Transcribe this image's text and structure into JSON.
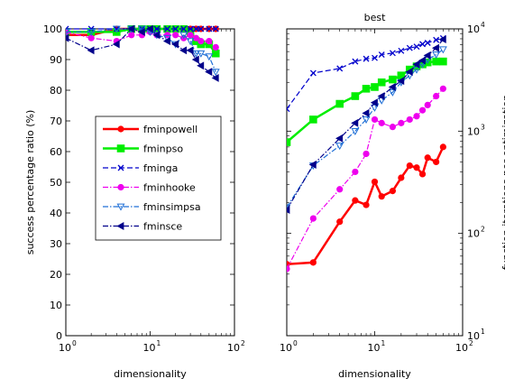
{
  "chart_data": [
    {
      "type": "line",
      "title": "",
      "xlabel": "dimensionality",
      "ylabel": "success percentage ratio (%)",
      "xscale": "log",
      "yscale": "linear",
      "xlim": [
        1,
        100
      ],
      "ylim": [
        0,
        100
      ],
      "x_ticks": [
        {
          "value": 1,
          "base": "10",
          "exp": "0"
        },
        {
          "value": 10,
          "base": "10",
          "exp": "1"
        },
        {
          "value": 100,
          "base": "10",
          "exp": "2"
        }
      ],
      "y_ticks": [
        "0",
        "10",
        "20",
        "30",
        "40",
        "50",
        "60",
        "70",
        "80",
        "90",
        "100"
      ],
      "y_tick_values": [
        0,
        10,
        20,
        30,
        40,
        50,
        60,
        70,
        80,
        90,
        100
      ],
      "legend_position": "center-left",
      "series": [
        {
          "name": "fminpowell",
          "color": "#ff0000",
          "marker": "dot",
          "dash": "solid",
          "width": 2.5,
          "points": [
            [
              1,
              98
            ],
            [
              2,
              98
            ],
            [
              4,
              100
            ],
            [
              6,
              100
            ],
            [
              8,
              100
            ],
            [
              10,
              100
            ],
            [
              12,
              100
            ],
            [
              16,
              100
            ],
            [
              20,
              100
            ],
            [
              25,
              100
            ],
            [
              30,
              100
            ],
            [
              35,
              100
            ],
            [
              40,
              100
            ],
            [
              50,
              100
            ],
            [
              60,
              100
            ]
          ]
        },
        {
          "name": "fminpso",
          "color": "#00ee00",
          "marker": "square",
          "dash": "solid",
          "width": 2.5,
          "points": [
            [
              1,
              99
            ],
            [
              2,
              99
            ],
            [
              4,
              99
            ],
            [
              6,
              100
            ],
            [
              8,
              100
            ],
            [
              10,
              100
            ],
            [
              12,
              100
            ],
            [
              16,
              100
            ],
            [
              20,
              100
            ],
            [
              25,
              100
            ],
            [
              30,
              99
            ],
            [
              35,
              96
            ],
            [
              40,
              95
            ],
            [
              50,
              95
            ],
            [
              60,
              92
            ]
          ]
        },
        {
          "name": "fminga",
          "color": "#0000cc",
          "marker": "x",
          "dash": "dash",
          "width": 1.2,
          "points": [
            [
              1,
              100
            ],
            [
              2,
              100
            ],
            [
              4,
              100
            ],
            [
              6,
              100
            ],
            [
              8,
              100
            ],
            [
              10,
              100
            ],
            [
              12,
              100
            ],
            [
              16,
              100
            ],
            [
              20,
              100
            ],
            [
              25,
              100
            ],
            [
              30,
              100
            ],
            [
              35,
              100
            ],
            [
              40,
              100
            ],
            [
              50,
              100
            ],
            [
              60,
              100
            ]
          ]
        },
        {
          "name": "fminhooke",
          "color": "#ee00ee",
          "marker": "dot",
          "dash": "dashdot",
          "width": 1.2,
          "points": [
            [
              1,
              99
            ],
            [
              2,
              97
            ],
            [
              4,
              96
            ],
            [
              6,
              98
            ],
            [
              8,
              98
            ],
            [
              10,
              99
            ],
            [
              12,
              98
            ],
            [
              16,
              98
            ],
            [
              20,
              98
            ],
            [
              25,
              97
            ],
            [
              30,
              98
            ],
            [
              35,
              97
            ],
            [
              40,
              96
            ],
            [
              50,
              96
            ],
            [
              60,
              94
            ]
          ]
        },
        {
          "name": "fminsimpsa",
          "color": "#1f6fd6",
          "marker": "triangle-down",
          "dash": "dashdot",
          "width": 1.2,
          "points": [
            [
              1,
              99
            ],
            [
              2,
              99
            ],
            [
              4,
              100
            ],
            [
              6,
              100
            ],
            [
              8,
              100
            ],
            [
              10,
              99
            ],
            [
              12,
              98
            ],
            [
              16,
              97
            ],
            [
              20,
              95
            ],
            [
              25,
              98
            ],
            [
              30,
              96
            ],
            [
              35,
              92
            ],
            [
              40,
              92
            ],
            [
              50,
              91
            ],
            [
              60,
              86
            ]
          ]
        },
        {
          "name": "fminsce",
          "color": "#00008b",
          "marker": "triangle-left",
          "dash": "dashdot",
          "width": 1.2,
          "points": [
            [
              1,
              97
            ],
            [
              2,
              93
            ],
            [
              4,
              95
            ],
            [
              6,
              100
            ],
            [
              8,
              99
            ],
            [
              10,
              100
            ],
            [
              12,
              98
            ],
            [
              16,
              96
            ],
            [
              20,
              95
            ],
            [
              25,
              93
            ],
            [
              30,
              93
            ],
            [
              35,
              90
            ],
            [
              40,
              88
            ],
            [
              50,
              86
            ],
            [
              60,
              84
            ]
          ]
        }
      ]
    },
    {
      "type": "line",
      "title": "best",
      "xlabel": "dimensionality",
      "ylabel": "function iterations per optimization",
      "xscale": "log",
      "yscale": "log",
      "xlim": [
        1,
        100
      ],
      "ylim": [
        10,
        10000
      ],
      "x_ticks": [
        {
          "value": 1,
          "base": "10",
          "exp": "0"
        },
        {
          "value": 10,
          "base": "10",
          "exp": "1"
        },
        {
          "value": 100,
          "base": "10",
          "exp": "2"
        }
      ],
      "y_ticks": [
        {
          "value": 10,
          "base": "10",
          "exp": "1"
        },
        {
          "value": 100,
          "base": "10",
          "exp": "2"
        },
        {
          "value": 1000,
          "base": "10",
          "exp": "3"
        },
        {
          "value": 10000,
          "base": "10",
          "exp": "4"
        }
      ],
      "series": [
        {
          "name": "fminpowell",
          "color": "#ff0000",
          "marker": "dot",
          "dash": "solid",
          "width": 2.5,
          "points": [
            [
              1,
              50
            ],
            [
              2,
              52
            ],
            [
              4,
              130
            ],
            [
              6,
              210
            ],
            [
              8,
              190
            ],
            [
              10,
              320
            ],
            [
              12,
              230
            ],
            [
              16,
              260
            ],
            [
              20,
              350
            ],
            [
              25,
              460
            ],
            [
              30,
              440
            ],
            [
              35,
              380
            ],
            [
              40,
              550
            ],
            [
              50,
              500
            ],
            [
              60,
              700
            ]
          ]
        },
        {
          "name": "fminpso",
          "color": "#00ee00",
          "marker": "square",
          "dash": "solid",
          "width": 2.5,
          "points": [
            [
              1,
              780
            ],
            [
              2,
              1300
            ],
            [
              4,
              1850
            ],
            [
              6,
              2200
            ],
            [
              8,
              2600
            ],
            [
              10,
              2700
            ],
            [
              12,
              3000
            ],
            [
              16,
              3200
            ],
            [
              20,
              3500
            ],
            [
              25,
              4000
            ],
            [
              30,
              4300
            ],
            [
              35,
              4500
            ],
            [
              40,
              4700
            ],
            [
              50,
              4800
            ],
            [
              60,
              4800
            ]
          ]
        },
        {
          "name": "fminga",
          "color": "#0000cc",
          "marker": "x",
          "dash": "dash",
          "width": 1.2,
          "points": [
            [
              1,
              1650
            ],
            [
              2,
              3700
            ],
            [
              4,
              4100
            ],
            [
              6,
              4800
            ],
            [
              8,
              5100
            ],
            [
              10,
              5200
            ],
            [
              12,
              5600
            ],
            [
              16,
              5800
            ],
            [
              20,
              6100
            ],
            [
              25,
              6500
            ],
            [
              30,
              6700
            ],
            [
              35,
              7100
            ],
            [
              40,
              7300
            ],
            [
              50,
              7800
            ],
            [
              60,
              8100
            ]
          ]
        },
        {
          "name": "fminhooke",
          "color": "#ee00ee",
          "marker": "dot",
          "dash": "dashdot",
          "width": 1.2,
          "points": [
            [
              1,
              45
            ],
            [
              2,
              140
            ],
            [
              4,
              270
            ],
            [
              6,
              400
            ],
            [
              8,
              600
            ],
            [
              10,
              1300
            ],
            [
              12,
              1200
            ],
            [
              16,
              1100
            ],
            [
              20,
              1200
            ],
            [
              25,
              1300
            ],
            [
              30,
              1400
            ],
            [
              35,
              1600
            ],
            [
              40,
              1800
            ],
            [
              50,
              2200
            ],
            [
              60,
              2600
            ]
          ]
        },
        {
          "name": "fminsimpsa",
          "color": "#1f6fd6",
          "marker": "triangle-down",
          "dash": "dashdot",
          "width": 1.2,
          "points": [
            [
              1,
              180
            ],
            [
              2,
              460
            ],
            [
              4,
              720
            ],
            [
              6,
              1000
            ],
            [
              8,
              1300
            ],
            [
              10,
              1700
            ],
            [
              12,
              2000
            ],
            [
              16,
              2400
            ],
            [
              20,
              3000
            ],
            [
              25,
              3500
            ],
            [
              30,
              4000
            ],
            [
              35,
              4500
            ],
            [
              40,
              5000
            ],
            [
              50,
              5600
            ],
            [
              60,
              6300
            ]
          ]
        },
        {
          "name": "fminsce",
          "color": "#00008b",
          "marker": "triangle-left",
          "dash": "dashdot",
          "width": 1.2,
          "points": [
            [
              1,
              170
            ],
            [
              2,
              470
            ],
            [
              4,
              850
            ],
            [
              6,
              1200
            ],
            [
              8,
              1500
            ],
            [
              10,
              1900
            ],
            [
              12,
              2200
            ],
            [
              16,
              2700
            ],
            [
              20,
              3100
            ],
            [
              25,
              3800
            ],
            [
              30,
              4500
            ],
            [
              35,
              4900
            ],
            [
              40,
              5500
            ],
            [
              50,
              6500
            ],
            [
              60,
              7900
            ]
          ]
        }
      ]
    }
  ]
}
